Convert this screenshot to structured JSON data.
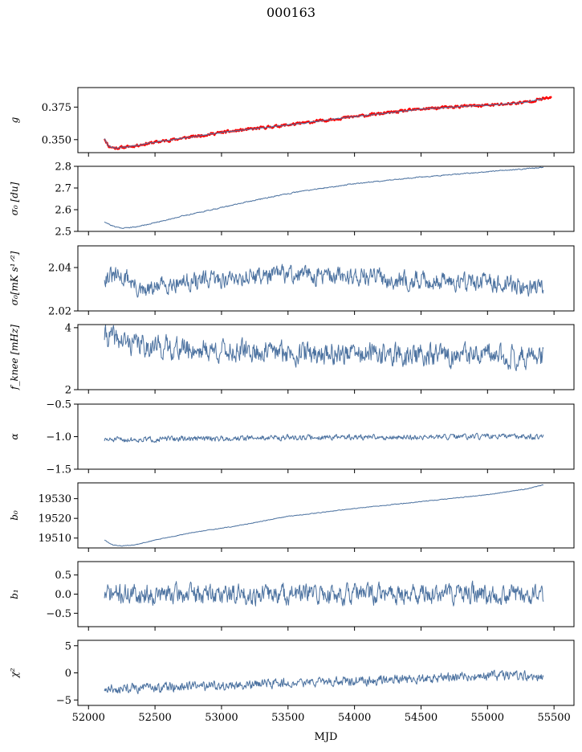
{
  "figure": {
    "title": "000163",
    "xlabel": "MJD"
  },
  "chart_data": [
    {
      "type": "line",
      "id": "g",
      "ylabel": "g",
      "ylim": [
        0.34,
        0.39
      ],
      "yticks": [
        {
          "v": 0.35,
          "label": "0.350"
        },
        {
          "v": 0.375,
          "label": "0.375"
        }
      ],
      "xlim": [
        51920,
        55650
      ],
      "series": [
        {
          "color": "#ff0000",
          "width": 2.2,
          "noise": 0.0009,
          "seed": 11,
          "x": [
            52120,
            52150,
            52200,
            52300,
            52500,
            52800,
            53000,
            53300,
            53600,
            53900,
            54200,
            54500,
            54800,
            55100,
            55300,
            55420,
            55480
          ],
          "y": [
            0.351,
            0.345,
            0.3435,
            0.3445,
            0.348,
            0.3525,
            0.3555,
            0.359,
            0.3625,
            0.3665,
            0.37,
            0.3735,
            0.3755,
            0.377,
            0.379,
            0.3815,
            0.382
          ]
        },
        {
          "color": "#4c72a0",
          "width": 1.0,
          "noise": 0.0003,
          "seed": 12,
          "x": [
            52120,
            52150,
            52200,
            52300,
            52500,
            52800,
            53000,
            53300,
            53600,
            53900,
            54200,
            54500,
            54800,
            55100,
            55300,
            55420
          ],
          "y": [
            0.351,
            0.345,
            0.3435,
            0.3445,
            0.348,
            0.3525,
            0.3555,
            0.359,
            0.3625,
            0.3665,
            0.37,
            0.3735,
            0.3755,
            0.377,
            0.379,
            0.3815
          ]
        }
      ]
    },
    {
      "type": "line",
      "id": "sigma0-du",
      "ylabel": "σ₀ [du]",
      "ylim": [
        2.5,
        2.8
      ],
      "yticks": [
        {
          "v": 2.5,
          "label": "2.5"
        },
        {
          "v": 2.6,
          "label": "2.6"
        },
        {
          "v": 2.7,
          "label": "2.7"
        },
        {
          "v": 2.8,
          "label": "2.8"
        }
      ],
      "xlim": [
        51920,
        55650
      ],
      "series": [
        {
          "color": "#4c72a0",
          "width": 1.0,
          "noise": 0.002,
          "seed": 21,
          "x": [
            52120,
            52180,
            52250,
            52350,
            52500,
            52700,
            53000,
            53300,
            53600,
            54000,
            54400,
            54800,
            55100,
            55420
          ],
          "y": [
            2.545,
            2.525,
            2.515,
            2.52,
            2.54,
            2.57,
            2.61,
            2.65,
            2.685,
            2.72,
            2.745,
            2.765,
            2.78,
            2.795
          ]
        }
      ]
    },
    {
      "type": "line",
      "id": "sigma0-mk",
      "ylabel": "σ₀[mK s¹ᐟ²]",
      "ylim": [
        2.02,
        2.05
      ],
      "yticks": [
        {
          "v": 2.02,
          "label": "2.02"
        },
        {
          "v": 2.04,
          "label": "2.04"
        }
      ],
      "xlim": [
        51920,
        55650
      ],
      "series": [
        {
          "color": "#4c72a0",
          "width": 1.0,
          "noise": 0.0035,
          "seed": 31,
          "x": [
            52120,
            52300,
            52400,
            52600,
            52900,
            53200,
            53500,
            53800,
            54100,
            54400,
            54700,
            55000,
            55200,
            55420
          ],
          "y": [
            2.036,
            2.035,
            2.028,
            2.033,
            2.034,
            2.036,
            2.037,
            2.036,
            2.036,
            2.034,
            2.034,
            2.033,
            2.032,
            2.03
          ]
        }
      ]
    },
    {
      "type": "line",
      "id": "fknee",
      "ylabel": "f_knee [mHz]",
      "ylim": [
        2,
        4.1
      ],
      "yticks": [
        {
          "v": 2,
          "label": "2"
        },
        {
          "v": 4,
          "label": "4"
        }
      ],
      "xlim": [
        51920,
        55650
      ],
      "series": [
        {
          "color": "#4c72a0",
          "width": 1.0,
          "noise": 0.3,
          "seed": 41,
          "x": [
            52120,
            52300,
            52600,
            53000,
            53500,
            54000,
            54500,
            55000,
            55420
          ],
          "y": [
            3.75,
            3.5,
            3.35,
            3.25,
            3.2,
            3.15,
            3.1,
            3.08,
            3.05
          ]
        }
      ]
    },
    {
      "type": "line",
      "id": "alpha",
      "ylabel": "α",
      "ylim": [
        -1.5,
        -0.5
      ],
      "yticks": [
        {
          "v": -1.5,
          "label": "−1.5"
        },
        {
          "v": -1.0,
          "label": "−1.0"
        },
        {
          "v": -0.5,
          "label": "−0.5"
        }
      ],
      "xlim": [
        51920,
        55650
      ],
      "series": [
        {
          "color": "#4c72a0",
          "width": 1.0,
          "noise": 0.035,
          "seed": 51,
          "x": [
            52120,
            52800,
            53600,
            54400,
            55000,
            55420
          ],
          "y": [
            -1.05,
            -1.03,
            -1.01,
            -1.01,
            -1.0,
            -1.0
          ]
        }
      ]
    },
    {
      "type": "line",
      "id": "b0",
      "ylabel": "b₀",
      "ylim": [
        19505,
        19538
      ],
      "yticks": [
        {
          "v": 19510,
          "label": "19510"
        },
        {
          "v": 19520,
          "label": "19520"
        },
        {
          "v": 19530,
          "label": "19530"
        }
      ],
      "xlim": [
        51920,
        55650
      ],
      "series": [
        {
          "color": "#4c72a0",
          "width": 1.0,
          "noise": 0.15,
          "seed": 61,
          "x": [
            52120,
            52180,
            52250,
            52350,
            52500,
            52800,
            53100,
            53500,
            54000,
            54500,
            55000,
            55300,
            55420
          ],
          "y": [
            19509,
            19506.5,
            19506,
            19506.5,
            19509,
            19513,
            19516,
            19521,
            19525,
            19528.5,
            19532,
            19535,
            19537
          ]
        }
      ]
    },
    {
      "type": "line",
      "id": "b1",
      "ylabel": "b₁",
      "ylim": [
        -0.85,
        0.85
      ],
      "yticks": [
        {
          "v": -0.5,
          "label": "−0.5"
        },
        {
          "v": 0.0,
          "label": "0.0"
        },
        {
          "v": 0.5,
          "label": "0.5"
        }
      ],
      "xlim": [
        51920,
        55650
      ],
      "series": [
        {
          "color": "#4c72a0",
          "width": 1.0,
          "noise": 0.22,
          "seed": 71,
          "x": [
            52120,
            53000,
            54000,
            55000,
            55420
          ],
          "y": [
            0.0,
            0.0,
            0.0,
            0.0,
            0.0
          ]
        }
      ]
    },
    {
      "type": "line",
      "id": "chi2",
      "ylabel": "χ²",
      "ylim": [
        -6,
        6
      ],
      "yticks": [
        {
          "v": -5,
          "label": "−5"
        },
        {
          "v": 0,
          "label": "0"
        },
        {
          "v": 5,
          "label": "5"
        }
      ],
      "xlim": [
        51920,
        55650
      ],
      "xticks": [
        {
          "v": 52000,
          "label": "52000"
        },
        {
          "v": 52500,
          "label": "52500"
        },
        {
          "v": 53000,
          "label": "53000"
        },
        {
          "v": 53500,
          "label": "53500"
        },
        {
          "v": 54000,
          "label": "54000"
        },
        {
          "v": 54500,
          "label": "54500"
        },
        {
          "v": 55000,
          "label": "55000"
        },
        {
          "v": 55500,
          "label": "55500"
        }
      ],
      "series": [
        {
          "color": "#4c72a0",
          "width": 1.0,
          "noise": 0.75,
          "seed": 81,
          "x": [
            52120,
            52400,
            53000,
            53600,
            54200,
            54800,
            55420
          ],
          "y": [
            -3.0,
            -2.8,
            -2.3,
            -1.8,
            -1.3,
            -0.8,
            -0.5
          ]
        }
      ]
    }
  ]
}
